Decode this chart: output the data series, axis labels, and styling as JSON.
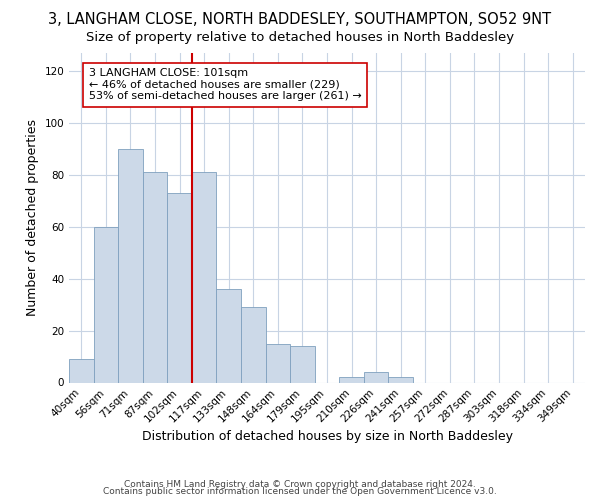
{
  "title": "3, LANGHAM CLOSE, NORTH BADDESLEY, SOUTHAMPTON, SO52 9NT",
  "subtitle": "Size of property relative to detached houses in North Baddesley",
  "xlabel": "Distribution of detached houses by size in North Baddesley",
  "ylabel": "Number of detached properties",
  "bar_color": "#ccd9e8",
  "bar_edge_color": "#7fa0be",
  "bar_labels": [
    "40sqm",
    "56sqm",
    "71sqm",
    "87sqm",
    "102sqm",
    "117sqm",
    "133sqm",
    "148sqm",
    "164sqm",
    "179sqm",
    "195sqm",
    "210sqm",
    "226sqm",
    "241sqm",
    "257sqm",
    "272sqm",
    "287sqm",
    "303sqm",
    "318sqm",
    "334sqm",
    "349sqm"
  ],
  "bar_heights": [
    9,
    60,
    90,
    81,
    73,
    81,
    36,
    29,
    15,
    14,
    0,
    2,
    4,
    2,
    0,
    0,
    0,
    0,
    0,
    0,
    0
  ],
  "vline_color": "#cc0000",
  "annotation_text": "3 LANGHAM CLOSE: 101sqm\n← 46% of detached houses are smaller (229)\n53% of semi-detached houses are larger (261) →",
  "annotation_box_color": "#ffffff",
  "annotation_box_edge_color": "#cc0000",
  "ylim": [
    0,
    127
  ],
  "yticks": [
    0,
    20,
    40,
    60,
    80,
    100,
    120
  ],
  "footer_line1": "Contains HM Land Registry data © Crown copyright and database right 2024.",
  "footer_line2": "Contains public sector information licensed under the Open Government Licence v3.0.",
  "background_color": "#ffffff",
  "grid_color": "#c8d4e4",
  "title_fontsize": 10.5,
  "subtitle_fontsize": 9.5,
  "axis_label_fontsize": 9,
  "tick_fontsize": 7.5,
  "annotation_fontsize": 8,
  "footer_fontsize": 6.5
}
